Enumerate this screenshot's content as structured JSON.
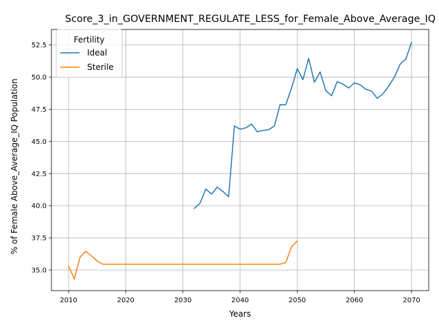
{
  "chart_data": {
    "type": "line",
    "title": "Score_3_in_GOVERNMENT_REGULATE_LESS_for_Female_Above_Average_IQ",
    "xlabel": "Years",
    "ylabel": "% of Female Above_Average_IQ Population",
    "xlim": [
      2007,
      2073
    ],
    "ylim": [
      33.4,
      53.7
    ],
    "xticks": [
      2010,
      2020,
      2030,
      2040,
      2050,
      2060,
      2070
    ],
    "yticks": [
      35.0,
      37.5,
      40.0,
      42.5,
      45.0,
      47.5,
      50.0,
      52.5
    ],
    "xtick_labels": [
      "2010",
      "2020",
      "2030",
      "2040",
      "2050",
      "2060",
      "2070"
    ],
    "ytick_labels": [
      "35.0",
      "37.5",
      "40.0",
      "42.5",
      "45.0",
      "47.5",
      "50.0",
      "52.5"
    ],
    "grid": true,
    "legend": {
      "title": "Fertility",
      "placement": "top-left"
    },
    "series": [
      {
        "name": "Ideal",
        "color": "#1f77b4",
        "x": [
          2032,
          2033,
          2034,
          2035,
          2036,
          2037,
          2038,
          2039,
          2040,
          2041,
          2042,
          2043,
          2044,
          2045,
          2046,
          2047,
          2048,
          2049,
          2050,
          2051,
          2052,
          2053,
          2054,
          2055,
          2056,
          2057,
          2058,
          2059,
          2060,
          2061,
          2062,
          2063,
          2064,
          2065,
          2066,
          2067,
          2068,
          2069,
          2070
        ],
        "y": [
          39.8,
          40.2,
          41.3,
          40.9,
          41.45,
          41.1,
          40.7,
          46.2,
          45.95,
          46.05,
          46.35,
          45.75,
          45.85,
          45.9,
          46.2,
          47.85,
          47.85,
          49.15,
          50.65,
          49.8,
          51.45,
          49.6,
          50.4,
          48.95,
          48.55,
          49.65,
          49.45,
          49.15,
          49.55,
          49.4,
          49.05,
          48.9,
          48.35,
          48.7,
          49.3,
          50.0,
          51.0,
          51.4,
          52.7
        ]
      },
      {
        "name": "Sterile",
        "color": "#ff7f0e",
        "x": [
          2010,
          2011,
          2012,
          2013,
          2014,
          2015,
          2016,
          2017,
          2018,
          2019,
          2020,
          2021,
          2022,
          2023,
          2024,
          2025,
          2026,
          2027,
          2028,
          2029,
          2030,
          2031,
          2032,
          2033,
          2034,
          2035,
          2036,
          2037,
          2038,
          2039,
          2040,
          2041,
          2042,
          2043,
          2044,
          2045,
          2046,
          2047,
          2048,
          2049,
          2050
        ],
        "y": [
          35.3,
          34.3,
          36.0,
          36.45,
          36.1,
          35.7,
          35.45,
          35.45,
          35.45,
          35.45,
          35.45,
          35.45,
          35.45,
          35.45,
          35.45,
          35.45,
          35.45,
          35.45,
          35.45,
          35.45,
          35.45,
          35.45,
          35.45,
          35.45,
          35.45,
          35.45,
          35.45,
          35.45,
          35.45,
          35.45,
          35.45,
          35.45,
          35.45,
          35.45,
          35.45,
          35.45,
          35.45,
          35.45,
          35.6,
          36.8,
          37.25
        ]
      }
    ]
  }
}
